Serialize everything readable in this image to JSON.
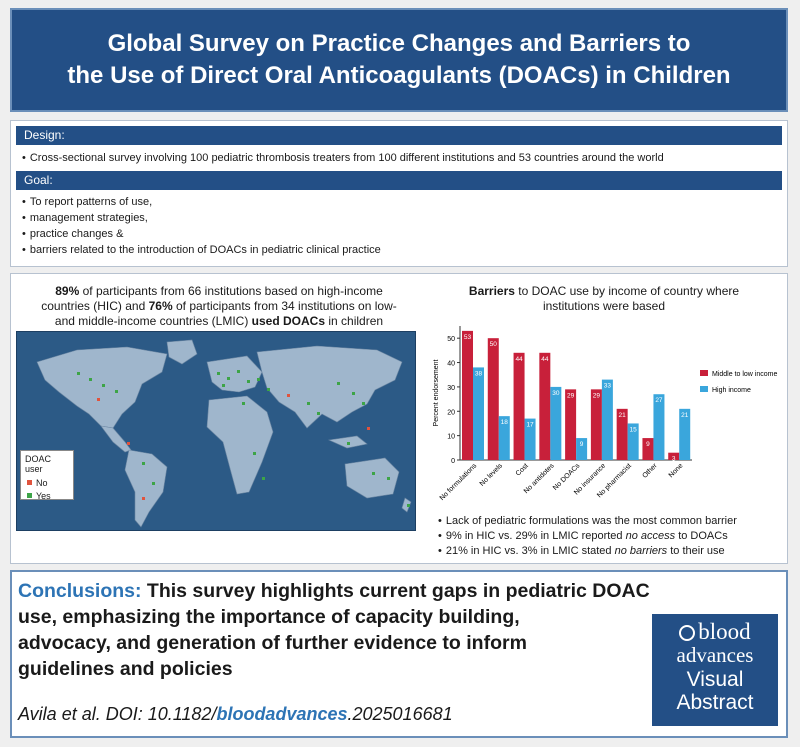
{
  "header": {
    "title_line1": "Global Survey on Practice Changes and Barriers to",
    "title_line2": "the Use of Direct Oral Anticoagulants (DOACs) in Children"
  },
  "design": {
    "label": "Design:",
    "bullet": "Cross-sectional survey involving 100 pediatric thrombosis treaters from 100 different institutions and 53 countries around the world"
  },
  "goal": {
    "label": "Goal:",
    "bullets": [
      "To report patterns of use,",
      "management strategies,",
      "practice changes &",
      "barriers related to the introduction of DOACs in pediatric clinical practice"
    ]
  },
  "usage": {
    "line1_pct": "89%",
    "line1_rest": " of participants from 66 institutions based on high-income",
    "line2_a": "countries (HIC) and ",
    "line2_pct": "76%",
    "line2_rest": " of participants from 34 institutions on low-",
    "line3_a": "and middle-income countries (LMIC) ",
    "line3_b": "used DOACs",
    "line3_c": " in children"
  },
  "map_legend": {
    "title": "DOAC user",
    "no": "No",
    "yes": "Yes",
    "no_color": "#e0533d",
    "yes_color": "#3da447"
  },
  "chart_data": {
    "type": "bar",
    "title_bold": "Barriers",
    "title_rest": " to DOAC use by income of country where",
    "title_line2": "institutions were based",
    "ylabel": "Percent endorsement",
    "ylim": [
      0,
      55
    ],
    "yticks": [
      0,
      10,
      20,
      30,
      40,
      50
    ],
    "categories": [
      "No formulations",
      "No levels",
      "Cost",
      "No antidotes",
      "No DOACs",
      "No insurance",
      "No pharmacist",
      "Other",
      "None"
    ],
    "series": [
      {
        "name": "Middle to low income",
        "color": "#c8203a",
        "values": [
          53,
          50,
          44,
          44,
          29,
          29,
          21,
          9,
          3
        ]
      },
      {
        "name": "High income",
        "color": "#3aa6dc",
        "values": [
          38,
          18,
          17,
          30,
          9,
          33,
          15,
          27,
          21
        ]
      }
    ],
    "legend_position": "right",
    "grid": false
  },
  "findings": [
    "Lack of pediatric formulations was the most common barrier",
    {
      "a": "9% in HIC vs. 29% in LMIC reported ",
      "b": "no access",
      "c": " to DOACs"
    },
    {
      "a": "21% in HIC vs. 3% in LMIC stated ",
      "b": "no barriers",
      "c": " to their use"
    }
  ],
  "conclusion": {
    "label": "Conclusions:",
    "line1": " This survey highlights current gaps in pediatric DOAC",
    "line2": "use, emphasizing the importance of capacity building,",
    "line3": "advocacy, and generation of further evidence to inform",
    "line4": "guidelines and policies",
    "citation_a": "Avila et al. DOI: 10.1182/",
    "citation_b": "bloodadvances",
    "citation_c": ".2025016681"
  },
  "logo": {
    "line1": "blood",
    "line2": "advances",
    "line3": "Visual",
    "line4": "Abstract"
  }
}
